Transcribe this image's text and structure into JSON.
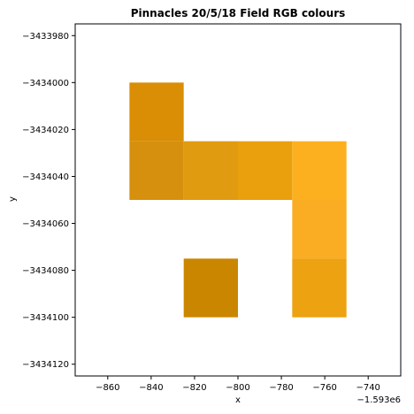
{
  "chart_data": {
    "type": "heatmap",
    "title": "Pinnacles 20/5/18 Field RGB colours",
    "xlabel": "x",
    "ylabel": "y",
    "x_offset_label": "−1.593e6",
    "xlim": [
      -875,
      -725
    ],
    "ylim": [
      -3434125,
      -3433975
    ],
    "x_ticks": [
      -860,
      -840,
      -820,
      -800,
      -780,
      -760,
      -740
    ],
    "x_tick_labels": [
      "−860",
      "−840",
      "−820",
      "−800",
      "−780",
      "−760",
      "−740"
    ],
    "y_ticks": [
      -3433980,
      -3434000,
      -3434020,
      -3434040,
      -3434060,
      -3434080,
      -3434100,
      -3434120
    ],
    "y_tick_labels": [
      "−3433980",
      "−3434000",
      "−3434020",
      "−3434040",
      "−3434060",
      "−3434080",
      "−3434100",
      "−3434120"
    ],
    "grid": false,
    "cells": [
      {
        "x0": -850,
        "x1": -825,
        "y0": -3434025,
        "y1": -3434000,
        "color": "#d98e05"
      },
      {
        "x0": -850,
        "x1": -825,
        "y0": -3434050,
        "y1": -3434025,
        "color": "#d6900e"
      },
      {
        "x0": -825,
        "x1": -800,
        "y0": -3434050,
        "y1": -3434025,
        "color": "#e09b10"
      },
      {
        "x0": -800,
        "x1": -775,
        "y0": -3434050,
        "y1": -3434025,
        "color": "#eaa00c"
      },
      {
        "x0": -775,
        "x1": -750,
        "y0": -3434050,
        "y1": -3434025,
        "color": "#fdb01f"
      },
      {
        "x0": -775,
        "x1": -750,
        "y0": -3434075,
        "y1": -3434050,
        "color": "#faad22"
      },
      {
        "x0": -775,
        "x1": -750,
        "y0": -3434100,
        "y1": -3434075,
        "color": "#eca211"
      },
      {
        "x0": -825,
        "x1": -800,
        "y0": -3434100,
        "y1": -3434075,
        "color": "#cb8600"
      }
    ]
  }
}
